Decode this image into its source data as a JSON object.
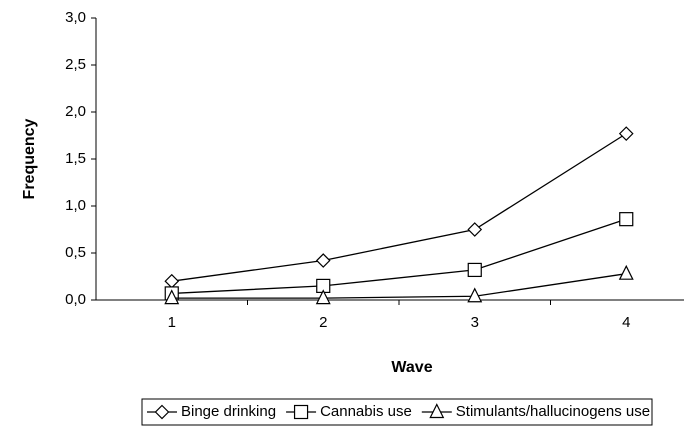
{
  "chart_data": {
    "type": "line",
    "xlabel": "Wave",
    "ylabel": "Frequency",
    "categories": [
      "1",
      "2",
      "3",
      "4"
    ],
    "series": [
      {
        "name": "Binge drinking",
        "color": "#000000",
        "marker": "diamond",
        "values": [
          0.2,
          0.42,
          0.75,
          1.77
        ]
      },
      {
        "name": "Cannabis use",
        "color": "#000000",
        "marker": "square",
        "values": [
          0.07,
          0.15,
          0.32,
          0.86
        ]
      },
      {
        "name": "Stimulants/hallucinogens use",
        "color": "#000000",
        "marker": "triangle",
        "values": [
          0.02,
          0.02,
          0.04,
          0.28
        ]
      }
    ],
    "ylim": [
      0,
      3
    ],
    "yticks": [
      {
        "value": 0,
        "label": "0,0"
      },
      {
        "value": 0.5,
        "label": "0,5"
      },
      {
        "value": 1,
        "label": "1,0"
      },
      {
        "value": 1.5,
        "label": "1,5"
      },
      {
        "value": 2,
        "label": "2,0"
      },
      {
        "value": 2.5,
        "label": "2,5"
      },
      {
        "value": 3,
        "label": "3,0"
      }
    ],
    "grid": false,
    "legend": "bottom"
  }
}
